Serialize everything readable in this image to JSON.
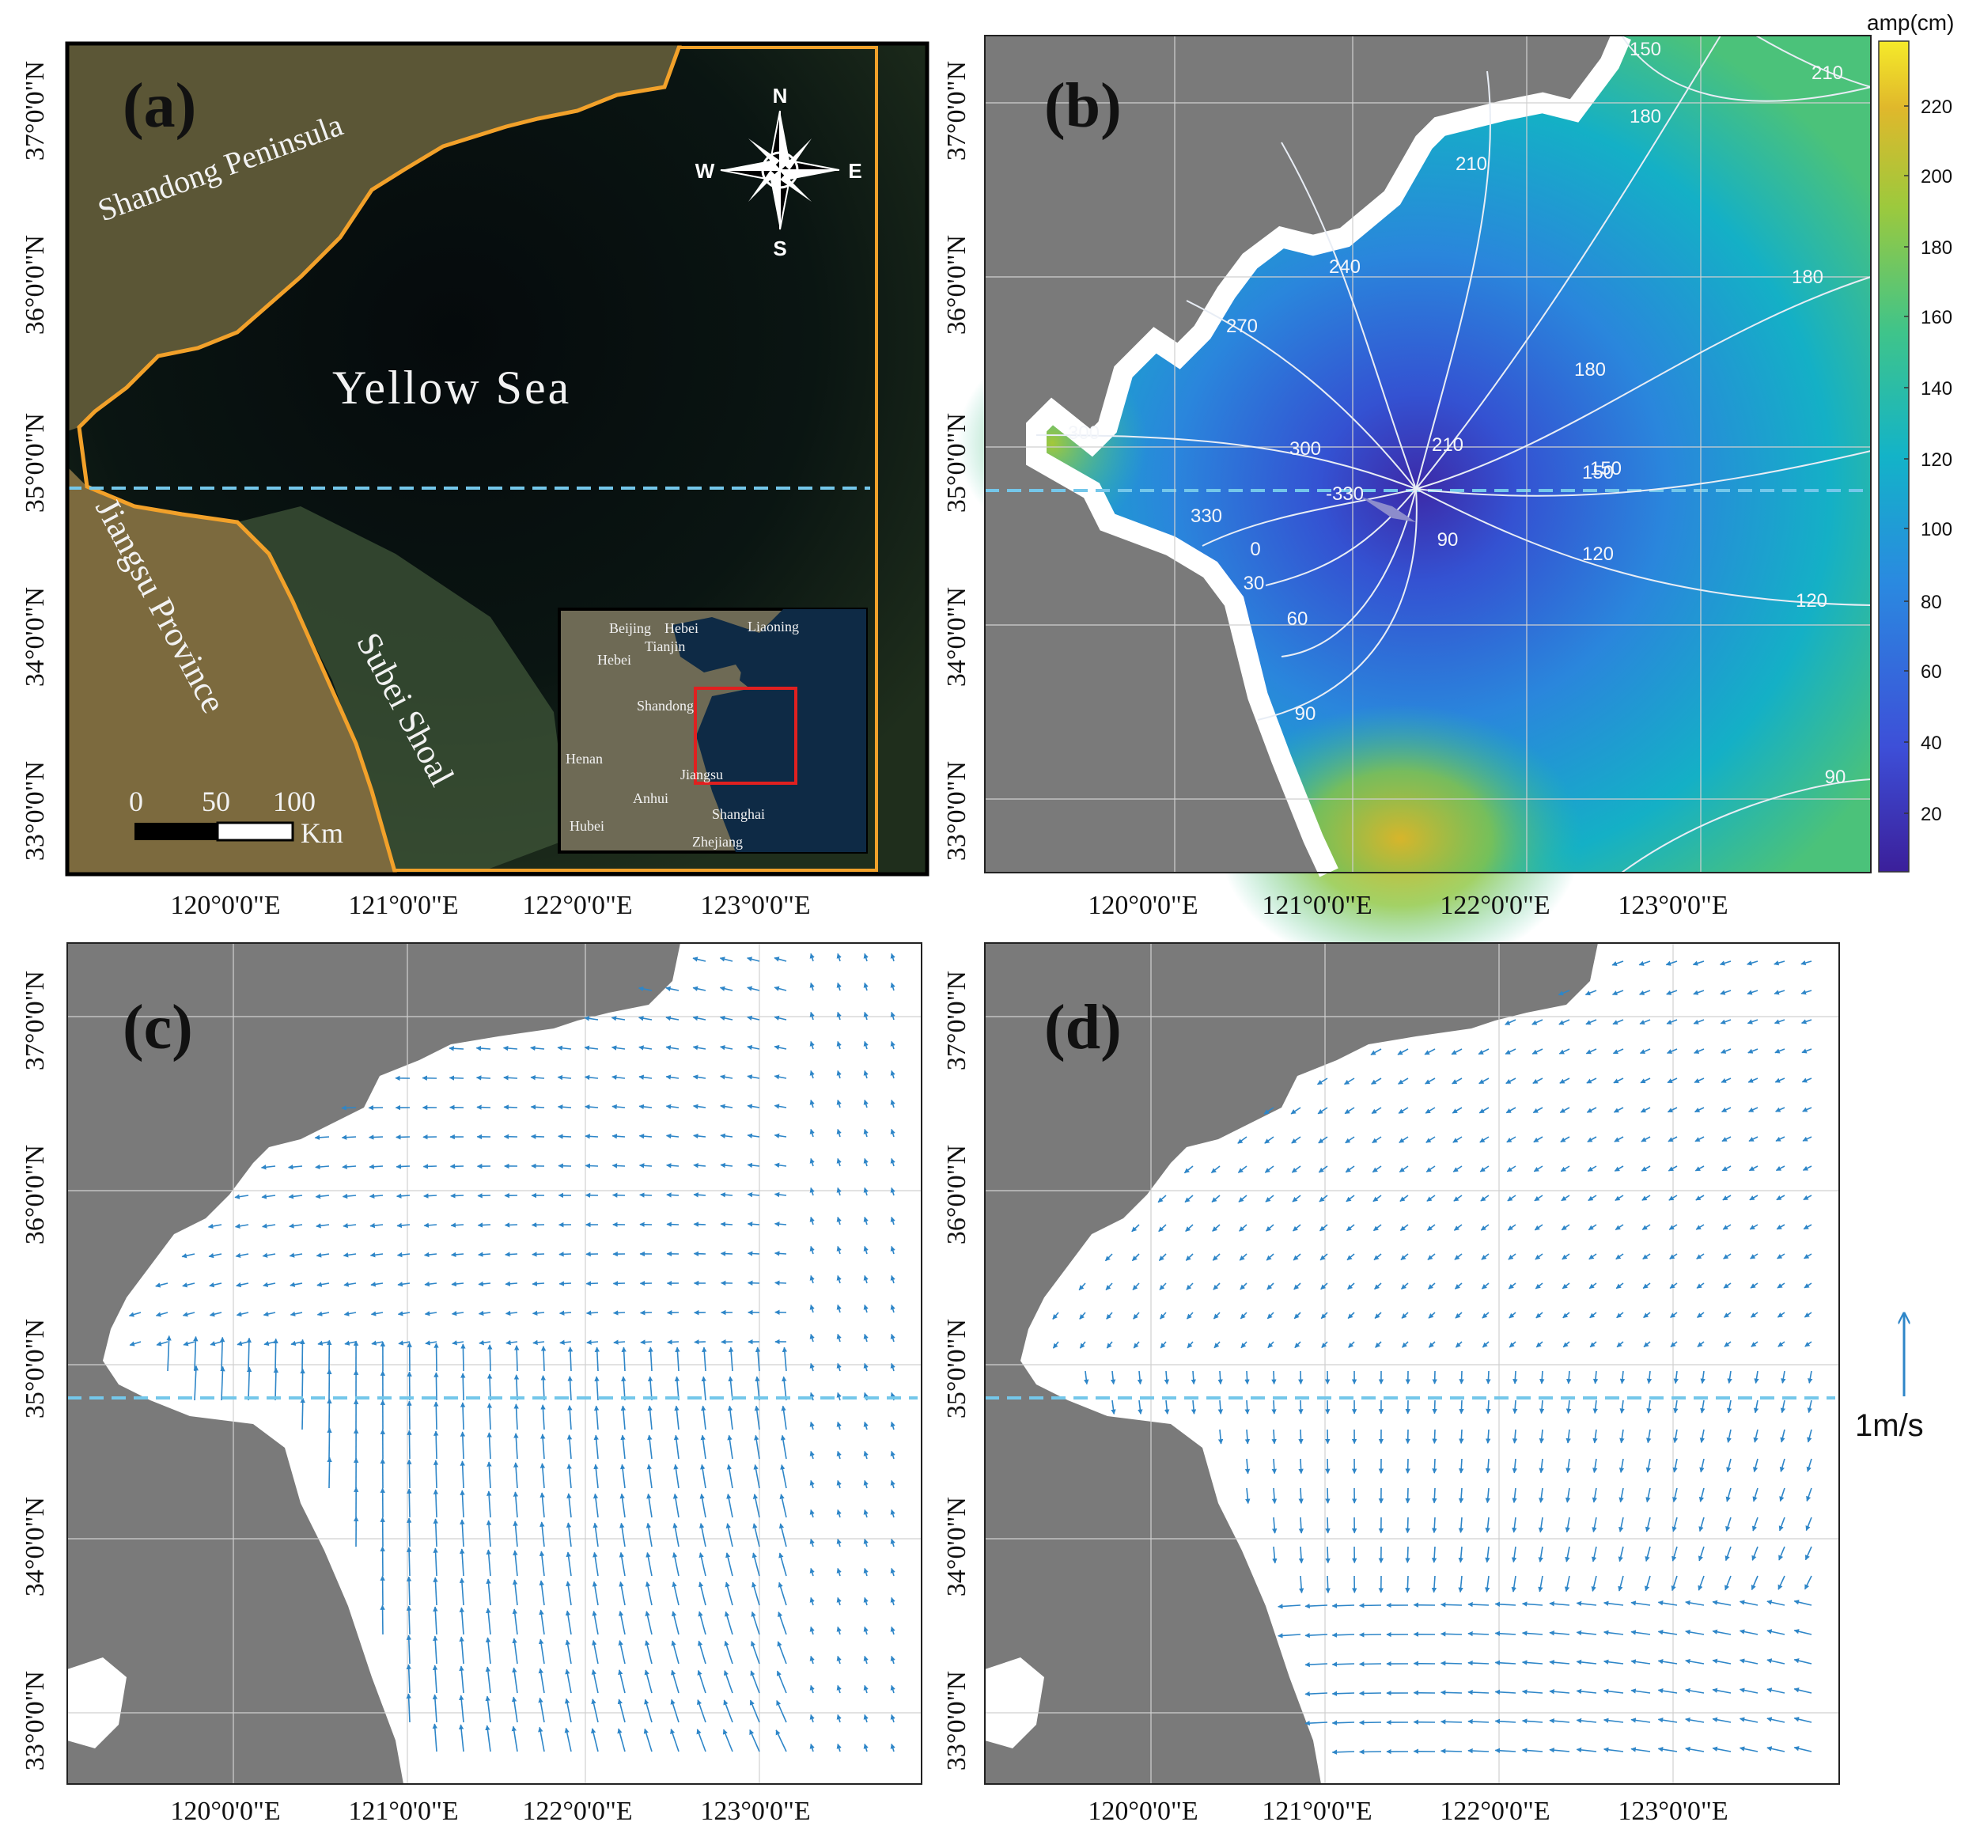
{
  "x_ticks": [
    "120°0'0\"E",
    "121°0'0\"E",
    "122°0'0\"E",
    "123°0'0\"E"
  ],
  "y_ticks": [
    "37°0'0\"N",
    "36°0'0\"N",
    "35°0'0\"N",
    "34°0'0\"N",
    "33°0'0\"N"
  ],
  "panels": {
    "a": {
      "letter": "(a)",
      "labels": {
        "peninsula": "Shandong Peninsula",
        "sea": "Yellow Sea",
        "province": "Jiangsu Province",
        "shoal": "Subei Shoal"
      },
      "compass": {
        "n": "N",
        "s": "S",
        "e": "E",
        "w": "W"
      },
      "scalebar": {
        "t0": "0",
        "t1": "50",
        "t2": "100",
        "unit": "Km"
      },
      "inset_labels": [
        "Beijing",
        "Hebei",
        "Liaoning",
        "Tianjin",
        "Hebei",
        "Shandong",
        "Henan",
        "Jiangsu",
        "Anhui",
        "Shanghai",
        "Hubei",
        "Zhejiang"
      ]
    },
    "b": {
      "letter": "(b)",
      "colorbar_title": "amp(cm)",
      "colorbar_ticks": [
        "220",
        "200",
        "180",
        "160",
        "140",
        "120",
        "100",
        "80",
        "60",
        "40",
        "20"
      ],
      "contour_labels": [
        "150",
        "210",
        "180",
        "210",
        "240",
        "180",
        "270",
        "180",
        "300",
        "300",
        "210",
        "150",
        "330",
        "-330",
        "150",
        "0",
        "90",
        "120",
        "30",
        "60",
        "120",
        "90",
        "90"
      ]
    },
    "c": {
      "letter": "(c)"
    },
    "d": {
      "letter": "(d)"
    },
    "velocity_scale_label": "1m/s"
  },
  "colors": {
    "land": "#7a7a7a",
    "sea_white": "#ffffff",
    "vector": "#2e86c8",
    "section_line": "#74c7ea",
    "coastline_a": "#f2a12a",
    "inset_box": "#e02020"
  }
}
